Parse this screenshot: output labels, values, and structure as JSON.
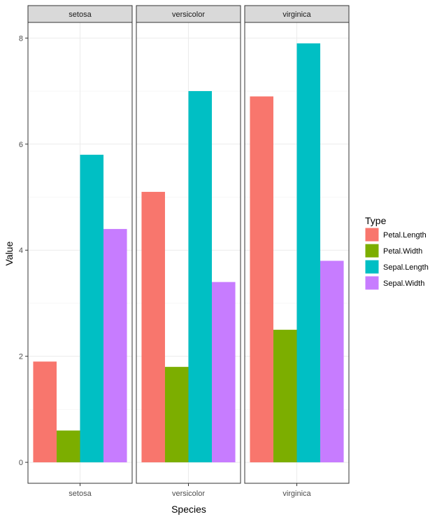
{
  "chart_data": {
    "type": "bar",
    "facets": [
      "setosa",
      "versicolor",
      "virginica"
    ],
    "series": [
      {
        "name": "Petal.Length",
        "color": "#F8766D",
        "values": [
          1.9,
          5.1,
          6.9
        ]
      },
      {
        "name": "Petal.Width",
        "color": "#7CAE00",
        "values": [
          0.6,
          1.8,
          2.5
        ]
      },
      {
        "name": "Sepal.Length",
        "color": "#00BFC4",
        "values": [
          5.8,
          7.0,
          7.9
        ]
      },
      {
        "name": "Sepal.Width",
        "color": "#C77CFF",
        "values": [
          4.4,
          3.4,
          3.8
        ]
      }
    ],
    "xlabel": "Species",
    "ylabel": "Value",
    "yticks": [
      0,
      2,
      4,
      6,
      8
    ],
    "ylim": [
      -0.395,
      8.295
    ],
    "legend_title": "Type",
    "legend_position": "right",
    "grid": true,
    "theme": "bw"
  }
}
